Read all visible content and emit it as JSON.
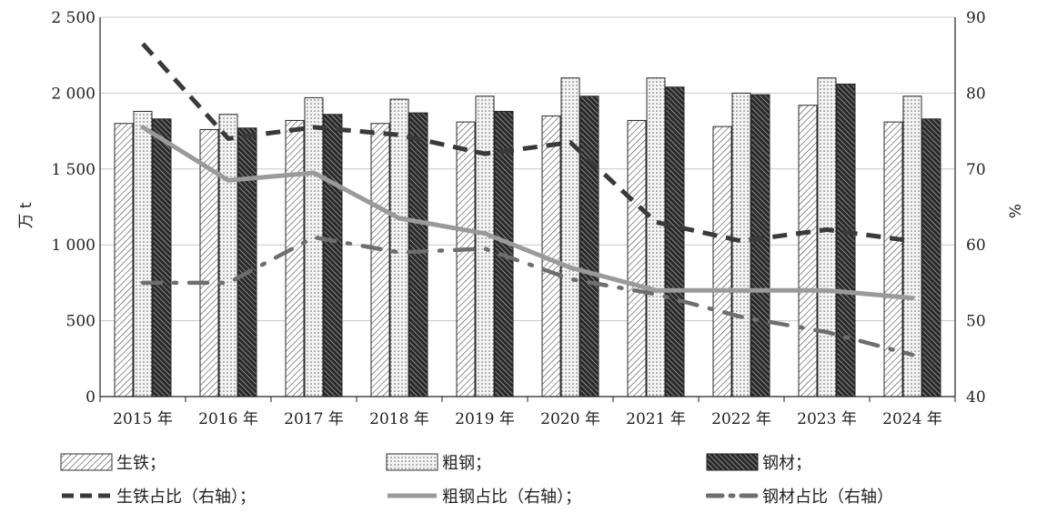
{
  "chart_data": {
    "type": "bar",
    "categories": [
      "2015 年",
      "2016 年",
      "2017 年",
      "2018 年",
      "2019 年",
      "2020 年",
      "2021 年",
      "2022 年",
      "2023 年",
      "2024 年"
    ],
    "ylabel": "万 t",
    "y2label": "%",
    "ylim": [
      0,
      2500
    ],
    "y2lim": [
      40,
      90
    ],
    "yticks": [
      "0",
      "500",
      "1 000",
      "1 500",
      "2 000",
      "2 500"
    ],
    "y2ticks": [
      "40",
      "50",
      "60",
      "70",
      "80",
      "90"
    ],
    "grid": true,
    "series": [
      {
        "name": "生铁；",
        "type": "bar",
        "pattern": "diag-light",
        "values": [
          1800,
          1760,
          1820,
          1800,
          1810,
          1850,
          1820,
          1780,
          1920,
          1810
        ]
      },
      {
        "name": "粗钢；",
        "type": "bar",
        "pattern": "dots",
        "values": [
          1880,
          1860,
          1970,
          1960,
          1980,
          2100,
          2100,
          2000,
          2100,
          1980
        ]
      },
      {
        "name": "钢材；",
        "type": "bar",
        "pattern": "diag-dark",
        "values": [
          1830,
          1770,
          1860,
          1870,
          1880,
          1980,
          2040,
          1990,
          2060,
          1830
        ]
      },
      {
        "name": "生铁占比（右轴）；",
        "type": "line",
        "axis": "right",
        "style": "dashed",
        "color": "#3a3a3a",
        "values": [
          86.5,
          74,
          75.5,
          74.5,
          72,
          73.5,
          63,
          60.5,
          62,
          60.5
        ]
      },
      {
        "name": "粗钢占比（右轴）；",
        "type": "line",
        "axis": "right",
        "style": "solid",
        "color": "#9a9a9a",
        "values": [
          75.5,
          68.5,
          69.5,
          63.5,
          61.5,
          57,
          54,
          54,
          54,
          53
        ]
      },
      {
        "name": "钢材占比（右轴）",
        "type": "line",
        "axis": "right",
        "style": "dash-dot",
        "color": "#6e6e6e",
        "values": [
          55,
          55,
          61,
          59,
          59.5,
          55.5,
          53.5,
          50.5,
          48.5,
          45.5
        ]
      }
    ]
  }
}
